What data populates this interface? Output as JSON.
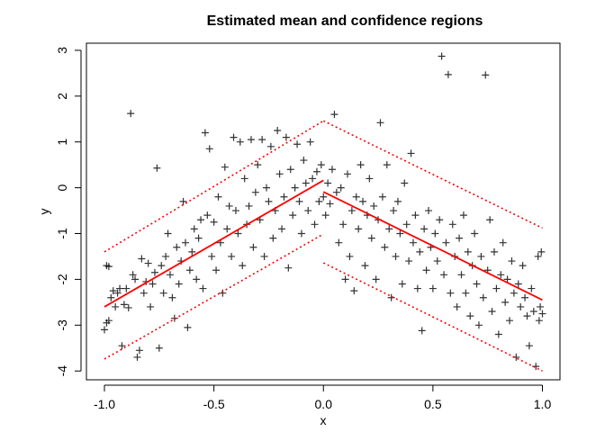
{
  "chart_data": {
    "type": "scatter",
    "title": "Estimated mean and confidence regions",
    "xlabel": "x",
    "ylabel": "y",
    "xlim": [
      -1.0,
      1.0
    ],
    "ylim": [
      -4,
      3
    ],
    "x_ticks": [
      "-1.0",
      "-0.5",
      "0.0",
      "0.5",
      "1.0"
    ],
    "x_tick_values": [
      -1.0,
      -0.5,
      0.0,
      0.5,
      1.0
    ],
    "y_ticks": [
      "-4",
      "-3",
      "-2",
      "-1",
      "0",
      "1",
      "2",
      "3"
    ],
    "y_tick_values": [
      -4,
      -3,
      -2,
      -1,
      0,
      1,
      2,
      3
    ],
    "grid": false,
    "colors": {
      "points": "#000000",
      "mean": "#ff0000",
      "band": "#ff0000"
    },
    "mean_line": [
      {
        "x": [
          -1.0,
          0.0
        ],
        "y": [
          -2.6,
          0.16
        ]
      },
      {
        "x": [
          0.0,
          1.0
        ],
        "y": [
          -0.09,
          -2.45
        ]
      }
    ],
    "upper_band": [
      {
        "x": [
          -1.0,
          0.0
        ],
        "y": [
          -1.4,
          1.46
        ]
      },
      {
        "x": [
          0.0,
          1.0
        ],
        "y": [
          1.46,
          -0.88
        ]
      }
    ],
    "lower_band": [
      {
        "x": [
          -1.0,
          0.0
        ],
        "y": [
          -3.74,
          -1.01
        ]
      },
      {
        "x": [
          0.0,
          1.0
        ],
        "y": [
          -1.64,
          -4.0
        ]
      }
    ],
    "points": [
      [
        -1.0,
        -3.1
      ],
      [
        -0.99,
        -2.95
      ],
      [
        -0.98,
        -2.9
      ],
      [
        -0.99,
        -1.7
      ],
      [
        -0.98,
        -1.72
      ],
      [
        -0.97,
        -2.4
      ],
      [
        -0.96,
        -2.25
      ],
      [
        -0.95,
        -2.6
      ],
      [
        -0.94,
        -2.3
      ],
      [
        -0.93,
        -2.2
      ],
      [
        -0.92,
        -3.45
      ],
      [
        -0.91,
        -2.55
      ],
      [
        -0.9,
        -2.2
      ],
      [
        -0.89,
        -2.62
      ],
      [
        -0.88,
        1.62
      ],
      [
        -0.87,
        -1.9
      ],
      [
        -0.86,
        -2.0
      ],
      [
        -0.85,
        -3.7
      ],
      [
        -0.84,
        -3.55
      ],
      [
        -0.83,
        -1.55
      ],
      [
        -0.82,
        -2.3
      ],
      [
        -0.81,
        -2.05
      ],
      [
        -0.8,
        -1.65
      ],
      [
        -0.79,
        -2.6
      ],
      [
        -0.78,
        -2.1
      ],
      [
        -0.77,
        -1.85
      ],
      [
        -0.76,
        0.43
      ],
      [
        -0.75,
        -3.5
      ],
      [
        -0.74,
        -1.7
      ],
      [
        -0.73,
        -2.3
      ],
      [
        -0.72,
        -1.5
      ],
      [
        -0.71,
        -1.0
      ],
      [
        -0.7,
        -1.9
      ],
      [
        -0.69,
        -2.4
      ],
      [
        -0.68,
        -2.85
      ],
      [
        -0.67,
        -1.3
      ],
      [
        -0.66,
        -2.1
      ],
      [
        -0.65,
        -1.6
      ],
      [
        -0.64,
        -0.3
      ],
      [
        -0.63,
        -1.2
      ],
      [
        -0.62,
        -3.05
      ],
      [
        -0.61,
        -1.8
      ],
      [
        -0.6,
        -1.4
      ],
      [
        -0.59,
        -0.9
      ],
      [
        -0.58,
        -2.0
      ],
      [
        -0.57,
        -1.1
      ],
      [
        -0.56,
        -0.7
      ],
      [
        -0.55,
        -2.2
      ],
      [
        -0.54,
        1.2
      ],
      [
        -0.53,
        -0.6
      ],
      [
        -0.52,
        0.85
      ],
      [
        -0.51,
        -1.5
      ],
      [
        -0.5,
        -0.75
      ],
      [
        -0.49,
        -1.8
      ],
      [
        -0.48,
        -0.2
      ],
      [
        -0.47,
        -1.2
      ],
      [
        -0.46,
        -2.3
      ],
      [
        -0.45,
        0.45
      ],
      [
        -0.44,
        -0.9
      ],
      [
        -0.43,
        -0.4
      ],
      [
        -0.42,
        -1.5
      ],
      [
        -0.41,
        1.1
      ],
      [
        -0.4,
        -0.5
      ],
      [
        -0.39,
        -1.0
      ],
      [
        -0.38,
        1.0
      ],
      [
        -0.37,
        -1.7
      ],
      [
        -0.36,
        0.2
      ],
      [
        -0.35,
        -0.8
      ],
      [
        -0.34,
        -0.4
      ],
      [
        -0.33,
        1.05
      ],
      [
        -0.32,
        -1.3
      ],
      [
        -0.31,
        -0.1
      ],
      [
        -0.3,
        0.5
      ],
      [
        -0.29,
        -0.7
      ],
      [
        -0.28,
        1.05
      ],
      [
        -0.27,
        -1.5
      ],
      [
        -0.26,
        0.0
      ],
      [
        -0.25,
        -0.3
      ],
      [
        -0.24,
        0.9
      ],
      [
        -0.23,
        -1.1
      ],
      [
        -0.22,
        -0.5
      ],
      [
        -0.21,
        1.25
      ],
      [
        -0.2,
        0.3
      ],
      [
        -0.19,
        -0.9
      ],
      [
        -0.18,
        -0.2
      ],
      [
        -0.17,
        1.1
      ],
      [
        -0.16,
        -1.75
      ],
      [
        -0.15,
        0.4
      ],
      [
        -0.14,
        -0.6
      ],
      [
        -0.13,
        0.0
      ],
      [
        -0.12,
        0.95
      ],
      [
        -0.11,
        -0.3
      ],
      [
        -0.1,
        -1.0
      ],
      [
        -0.09,
        0.6
      ],
      [
        -0.08,
        0.1
      ],
      [
        -0.07,
        -0.5
      ],
      [
        -0.06,
        1.0
      ],
      [
        -0.05,
        0.2
      ],
      [
        -0.04,
        -0.8
      ],
      [
        -0.03,
        0.35
      ],
      [
        -0.02,
        -0.3
      ],
      [
        -0.01,
        0.5
      ],
      [
        0.0,
        -0.2
      ],
      [
        0.01,
        -0.6
      ],
      [
        0.02,
        0.1
      ],
      [
        0.03,
        -0.35
      ],
      [
        0.04,
        0.4
      ],
      [
        0.05,
        1.6
      ],
      [
        0.06,
        -0.1
      ],
      [
        0.07,
        -1.2
      ],
      [
        0.08,
        0.0
      ],
      [
        0.09,
        -0.8
      ],
      [
        0.1,
        -2.0
      ],
      [
        0.11,
        0.3
      ],
      [
        0.12,
        -1.5
      ],
      [
        0.13,
        -0.5
      ],
      [
        0.14,
        -2.25
      ],
      [
        0.15,
        -0.2
      ],
      [
        0.16,
        -0.9
      ],
      [
        0.17,
        0.5
      ],
      [
        0.18,
        -0.3
      ],
      [
        0.19,
        -1.7
      ],
      [
        0.2,
        -0.6
      ],
      [
        0.21,
        0.2
      ],
      [
        0.22,
        -1.1
      ],
      [
        0.23,
        -0.4
      ],
      [
        0.24,
        -2.0
      ],
      [
        0.25,
        -0.7
      ],
      [
        0.26,
        1.42
      ],
      [
        0.27,
        -0.2
      ],
      [
        0.28,
        -1.3
      ],
      [
        0.29,
        0.5
      ],
      [
        0.3,
        -0.9
      ],
      [
        0.31,
        -2.4
      ],
      [
        0.32,
        -0.5
      ],
      [
        0.33,
        -1.5
      ],
      [
        0.34,
        -0.3
      ],
      [
        0.35,
        -1.0
      ],
      [
        0.36,
        -2.1
      ],
      [
        0.37,
        0.1
      ],
      [
        0.38,
        -0.8
      ],
      [
        0.39,
        -1.6
      ],
      [
        0.4,
        0.75
      ],
      [
        0.41,
        -1.2
      ],
      [
        0.42,
        -0.6
      ],
      [
        0.43,
        -2.2
      ],
      [
        0.44,
        -1.4
      ],
      [
        0.45,
        -3.12
      ],
      [
        0.46,
        -0.9
      ],
      [
        0.47,
        -1.8
      ],
      [
        0.48,
        -0.5
      ],
      [
        0.49,
        -1.3
      ],
      [
        0.5,
        -2.2
      ],
      [
        0.51,
        -1.0
      ],
      [
        0.52,
        -1.6
      ],
      [
        0.53,
        -0.7
      ],
      [
        0.54,
        2.87
      ],
      [
        0.55,
        -1.9
      ],
      [
        0.56,
        -1.2
      ],
      [
        0.57,
        2.47
      ],
      [
        0.58,
        -2.3
      ],
      [
        0.59,
        -0.8
      ],
      [
        0.6,
        -1.5
      ],
      [
        0.61,
        -2.6
      ],
      [
        0.62,
        -1.1
      ],
      [
        0.63,
        -1.9
      ],
      [
        0.64,
        -0.6
      ],
      [
        0.65,
        -2.3
      ],
      [
        0.66,
        -1.4
      ],
      [
        0.67,
        -2.8
      ],
      [
        0.68,
        -1.7
      ],
      [
        0.69,
        -1.0
      ],
      [
        0.7,
        -2.1
      ],
      [
        0.71,
        -3.0
      ],
      [
        0.72,
        -1.5
      ],
      [
        0.73,
        -2.4
      ],
      [
        0.74,
        2.46
      ],
      [
        0.75,
        -1.8
      ],
      [
        0.76,
        -0.7
      ],
      [
        0.77,
        -2.7
      ],
      [
        0.78,
        -1.4
      ],
      [
        0.79,
        -2.2
      ],
      [
        0.8,
        -3.2
      ],
      [
        0.81,
        -1.9
      ],
      [
        0.82,
        -1.2
      ],
      [
        0.83,
        -2.5
      ],
      [
        0.84,
        -2.0
      ],
      [
        0.85,
        -2.9
      ],
      [
        0.86,
        -1.6
      ],
      [
        0.87,
        -2.3
      ],
      [
        0.88,
        -3.7
      ],
      [
        0.89,
        -2.1
      ],
      [
        0.9,
        -2.6
      ],
      [
        0.91,
        -1.7
      ],
      [
        0.92,
        -2.4
      ],
      [
        0.93,
        -2.8
      ],
      [
        0.94,
        -3.45
      ],
      [
        0.95,
        -2.2
      ],
      [
        0.96,
        -2.7
      ],
      [
        0.97,
        -3.9
      ],
      [
        0.98,
        -1.5
      ],
      [
        0.99,
        -2.6
      ],
      [
        1.0,
        -2.75
      ],
      [
        0.995,
        -1.4
      ],
      [
        0.985,
        -2.9
      ]
    ]
  }
}
